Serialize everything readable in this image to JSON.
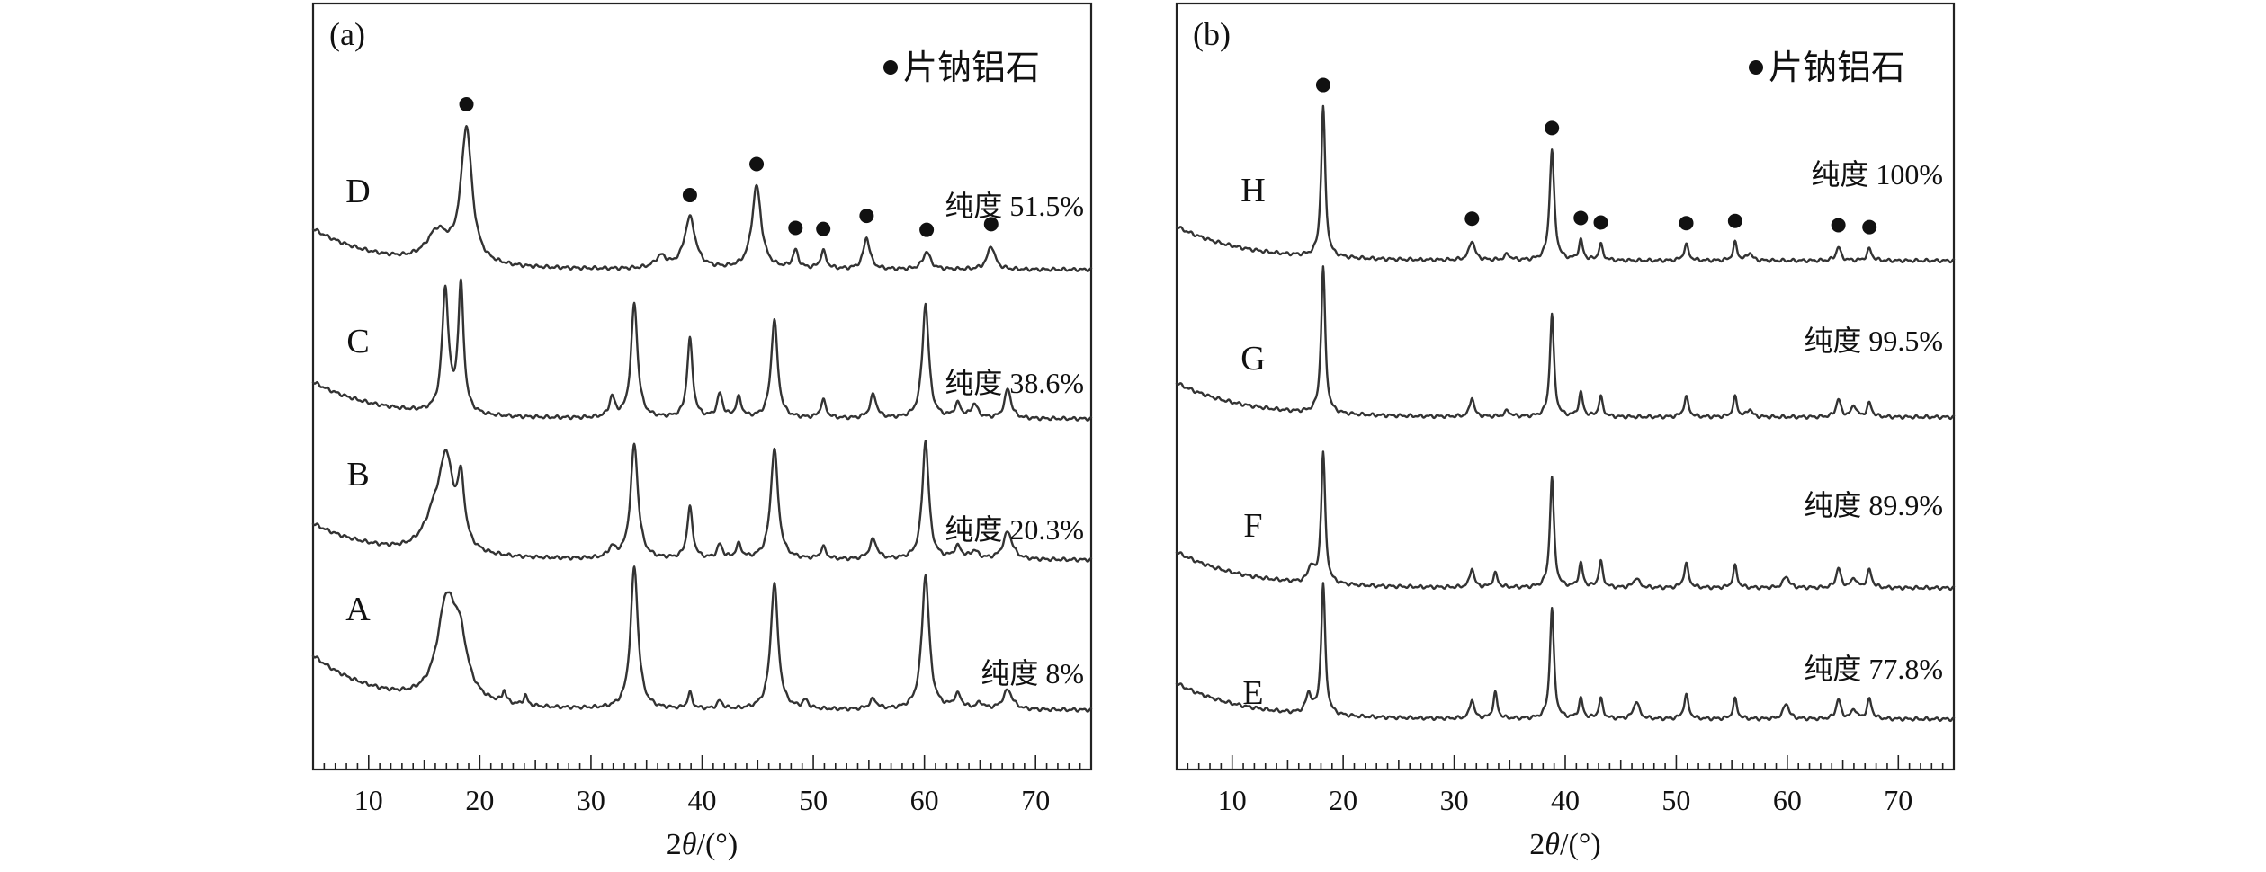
{
  "chart_data": [
    {
      "type": "line",
      "panel_label": "(a)",
      "xlabel_main": "2",
      "xlabel_theta": "θ",
      "xlabel_unit": "/(°)",
      "xlim": [
        5,
        75
      ],
      "x_ticks": [
        10,
        20,
        30,
        40,
        50,
        60,
        70
      ],
      "x_tick_labels": [
        "10",
        "20",
        "30",
        "40",
        "50",
        "60",
        "70"
      ],
      "legend": "片钠铝石",
      "series": [
        {
          "name": "A",
          "purity": "纯度 8%",
          "baseline": 60,
          "peaks": [
            [
              17.0,
              48,
              1.0
            ],
            [
              18.2,
              26,
              0.8
            ],
            [
              22.2,
              6,
              0.2
            ],
            [
              24.1,
              5,
              0.2
            ],
            [
              33.9,
              72,
              0.4
            ],
            [
              38.9,
              8,
              0.25
            ],
            [
              41.6,
              4,
              0.3
            ],
            [
              46.5,
              64,
              0.4
            ],
            [
              49.3,
              4,
              0.3
            ],
            [
              55.4,
              5,
              0.4
            ],
            [
              60.1,
              68,
              0.4
            ],
            [
              63.0,
              7,
              0.4
            ],
            [
              67.5,
              10,
              0.5
            ],
            [
              65.0,
              3,
              0.4
            ]
          ]
        },
        {
          "name": "B",
          "purity": "纯度 20.3%",
          "baseline": 40,
          "peaks": [
            [
              17.0,
              40,
              0.7
            ],
            [
              18.3,
              32,
              0.4
            ],
            [
              16.0,
              18,
              1.2
            ],
            [
              31.9,
              5,
              0.4
            ],
            [
              33.9,
              58,
              0.4
            ],
            [
              38.9,
              26,
              0.3
            ],
            [
              41.6,
              7,
              0.3
            ],
            [
              43.3,
              7,
              0.3
            ],
            [
              46.5,
              56,
              0.4
            ],
            [
              50.9,
              6,
              0.3
            ],
            [
              55.4,
              10,
              0.4
            ],
            [
              60.1,
              60,
              0.35
            ],
            [
              63.0,
              6,
              0.4
            ],
            [
              64.5,
              4,
              0.4
            ],
            [
              67.5,
              14,
              0.5
            ]
          ]
        },
        {
          "name": "C",
          "purity": "纯度 38.6%",
          "baseline": 41,
          "peaks": [
            [
              16.9,
              62,
              0.35
            ],
            [
              18.3,
              64,
              0.3
            ],
            [
              31.9,
              10,
              0.3
            ],
            [
              33.9,
              58,
              0.35
            ],
            [
              38.9,
              40,
              0.3
            ],
            [
              41.6,
              12,
              0.3
            ],
            [
              43.3,
              10,
              0.3
            ],
            [
              46.5,
              50,
              0.35
            ],
            [
              50.9,
              9,
              0.3
            ],
            [
              55.4,
              12,
              0.35
            ],
            [
              60.1,
              58,
              0.35
            ],
            [
              63.0,
              7,
              0.35
            ],
            [
              64.5,
              7,
              0.35
            ],
            [
              67.5,
              15,
              0.35
            ]
          ]
        },
        {
          "name": "D",
          "purity": "纯度 51.5%",
          "baseline": 45,
          "peaks": [
            [
              18.8,
              68,
              0.6
            ],
            [
              16.2,
              15,
              1.2
            ],
            [
              36.3,
              6,
              0.6
            ],
            [
              38.9,
              26,
              0.6
            ],
            [
              44.9,
              42,
              0.5
            ],
            [
              48.4,
              9,
              0.3
            ],
            [
              50.9,
              9,
              0.3
            ],
            [
              54.8,
              16,
              0.35
            ],
            [
              60.2,
              9,
              0.4
            ],
            [
              66.0,
              12,
              0.4
            ]
          ]
        }
      ],
      "markers": [
        18.8,
        38.9,
        44.9,
        48.4,
        50.9,
        54.8,
        60.2,
        66.0
      ]
    },
    {
      "type": "line",
      "panel_label": "(b)",
      "xlabel_main": "2",
      "xlabel_theta": "θ",
      "xlabel_unit": "/(°)",
      "xlim": [
        5,
        75
      ],
      "x_ticks": [
        10,
        20,
        30,
        40,
        50,
        60,
        70
      ],
      "x_tick_labels": [
        "10",
        "20",
        "30",
        "40",
        "50",
        "60",
        "70"
      ],
      "legend": "片钠铝石",
      "series": [
        {
          "name": "E",
          "purity": "纯度 77.8%",
          "baseline": 40,
          "peaks": [
            [
              16.9,
              10,
              0.3
            ],
            [
              18.2,
              66,
              0.22
            ],
            [
              31.6,
              10,
              0.22
            ],
            [
              33.7,
              13,
              0.22
            ],
            [
              38.8,
              56,
              0.22
            ],
            [
              41.4,
              10,
              0.22
            ],
            [
              43.2,
              10,
              0.22
            ],
            [
              46.4,
              9,
              0.3
            ],
            [
              50.9,
              12,
              0.25
            ],
            [
              55.3,
              10,
              0.22
            ],
            [
              59.9,
              8,
              0.3
            ],
            [
              64.6,
              10,
              0.25
            ],
            [
              67.4,
              10,
              0.25
            ],
            [
              66.0,
              5,
              0.25
            ]
          ]
        },
        {
          "name": "F",
          "purity": "纯度 89.9%",
          "baseline": 40,
          "peaks": [
            [
              17.1,
              8,
              0.3
            ],
            [
              18.2,
              66,
              0.22
            ],
            [
              31.6,
              10,
              0.22
            ],
            [
              33.7,
              7,
              0.25
            ],
            [
              38.8,
              56,
              0.22
            ],
            [
              41.4,
              12,
              0.22
            ],
            [
              43.2,
              13,
              0.22
            ],
            [
              46.4,
              5,
              0.3
            ],
            [
              50.9,
              12,
              0.25
            ],
            [
              55.3,
              11,
              0.22
            ],
            [
              59.9,
              6,
              0.3
            ],
            [
              64.6,
              10,
              0.25
            ],
            [
              67.4,
              9,
              0.25
            ],
            [
              66.0,
              5,
              0.25
            ]
          ]
        },
        {
          "name": "G",
          "purity": "纯度 99.5%",
          "baseline": 38,
          "peaks": [
            [
              18.2,
              74,
              0.22
            ],
            [
              31.6,
              10,
              0.22
            ],
            [
              34.8,
              3,
              0.3
            ],
            [
              38.8,
              52,
              0.22
            ],
            [
              41.4,
              12,
              0.22
            ],
            [
              43.2,
              10,
              0.22
            ],
            [
              50.9,
              10,
              0.25
            ],
            [
              55.3,
              10,
              0.22
            ],
            [
              56.6,
              4,
              0.25
            ],
            [
              64.6,
              9,
              0.25
            ],
            [
              66.0,
              6,
              0.25
            ],
            [
              67.4,
              7,
              0.25
            ]
          ]
        },
        {
          "name": "H",
          "purity": "纯度 100%",
          "baseline": 38,
          "peaks": [
            [
              18.2,
              76,
              0.22
            ],
            [
              31.6,
              10,
              0.3
            ],
            [
              34.8,
              3,
              0.3
            ],
            [
              38.8,
              56,
              0.25
            ],
            [
              41.4,
              10,
              0.22
            ],
            [
              43.2,
              8,
              0.22
            ],
            [
              50.9,
              8,
              0.25
            ],
            [
              55.3,
              9,
              0.22
            ],
            [
              56.6,
              4,
              0.25
            ],
            [
              64.6,
              7,
              0.25
            ],
            [
              67.4,
              6,
              0.25
            ]
          ]
        }
      ],
      "markers": [
        18.2,
        31.6,
        38.8,
        41.4,
        43.2,
        50.9,
        55.3,
        64.6,
        67.4
      ]
    }
  ]
}
